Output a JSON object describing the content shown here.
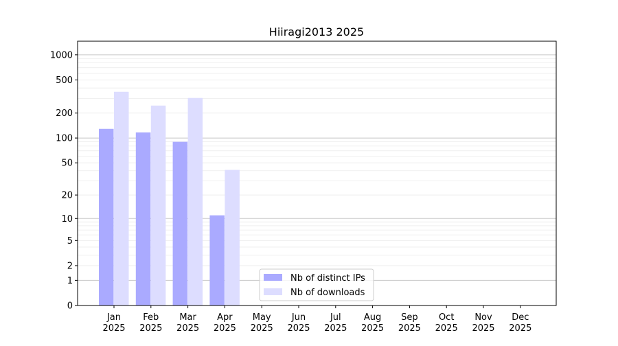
{
  "chart_data": {
    "type": "bar",
    "title": "Hiiragi2013 2025",
    "xlabel": "",
    "ylabel": "",
    "y_scale": "symlog (log10(1+y))",
    "ylim": [
      0,
      1300
    ],
    "grid": true,
    "legend_position": "bottom-center",
    "categories": [
      "Jan\n2025",
      "Feb\n2025",
      "Mar\n2025",
      "Apr\n2025",
      "May\n2025",
      "Jun\n2025",
      "Jul\n2025",
      "Aug\n2025",
      "Sep\n2025",
      "Oct\n2025",
      "Nov\n2025",
      "Dec\n2025"
    ],
    "y_ticks": [
      0,
      1,
      2,
      5,
      10,
      20,
      50,
      100,
      200,
      500,
      1000
    ],
    "series": [
      {
        "name": "Nb of distinct IPs",
        "color": "#aaaaff",
        "values": [
          129,
          117,
          90,
          11,
          0,
          0,
          0,
          0,
          0,
          0,
          0,
          0
        ]
      },
      {
        "name": "Nb of downloads",
        "color": "#ddddff",
        "values": [
          360,
          246,
          304,
          41,
          0,
          0,
          0,
          0,
          0,
          0,
          0,
          0
        ]
      }
    ]
  }
}
